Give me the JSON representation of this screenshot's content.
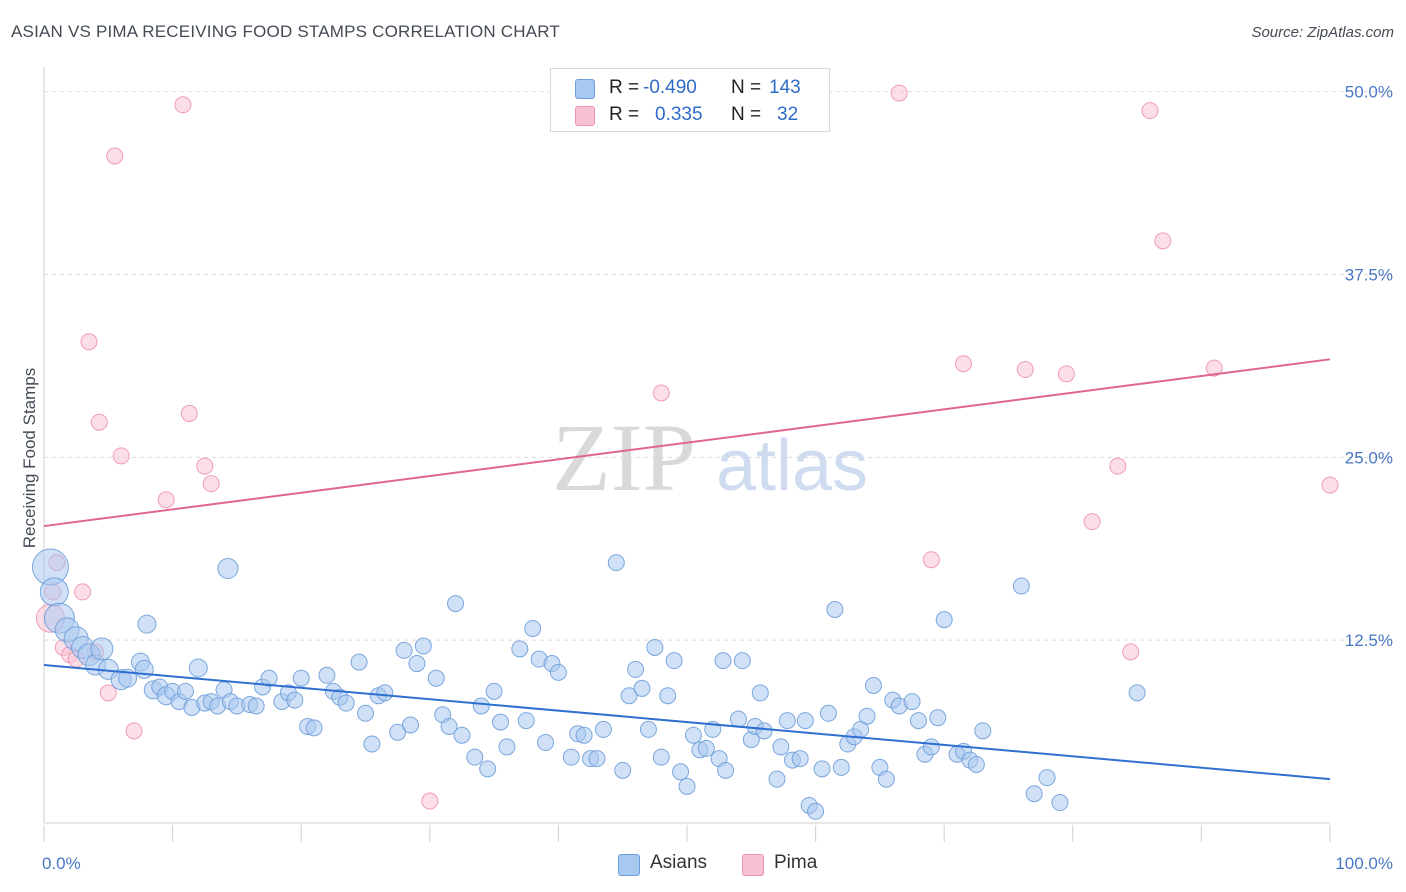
{
  "header": {
    "title": "ASIAN VS PIMA RECEIVING FOOD STAMPS CORRELATION CHART",
    "source": "Source: ZipAtlas.com"
  },
  "legend": {
    "asians": {
      "r_label": "R =",
      "r_value": "-0.490",
      "n_label": "N =",
      "n_value": "143"
    },
    "pima": {
      "r_label": "R =",
      "r_value": "0.335",
      "n_label": "N =",
      "n_value": "32"
    }
  },
  "bottom_legend": {
    "asians": "Asians",
    "pima": "Pima"
  },
  "watermark": {
    "zip": "ZIP",
    "atlas": "atlas"
  },
  "colors": {
    "asians_fill": "#a9c8f0",
    "asians_stroke": "#6f9fd9",
    "asians_line": "#2e6fcf",
    "pima_fill": "#f7c3d2",
    "pima_stroke": "#ee94b0",
    "pima_line": "#e0668f",
    "tick_text": "#4a78c4",
    "grid": "#dcdcdc"
  },
  "chart_data": {
    "type": "scatter",
    "title": "ASIAN VS PIMA RECEIVING FOOD STAMPS CORRELATION CHART",
    "xlabel": "",
    "ylabel": "Receiving Food Stamps",
    "xlim": [
      0,
      100
    ],
    "ylim": [
      0,
      51
    ],
    "y_ticks": [
      12.5,
      25.0,
      37.5,
      50.0
    ],
    "y_tick_labels": [
      "12.5%",
      "25.0%",
      "37.5%",
      "50.0%"
    ],
    "x_tick_labels": [
      "0.0%",
      "100.0%"
    ],
    "series": [
      {
        "name": "Asians",
        "r": -0.49,
        "n": 143,
        "trend": {
          "x": [
            0,
            100
          ],
          "y": [
            10.8,
            3.0
          ]
        },
        "points": [
          [
            0.5,
            17.5,
            18
          ],
          [
            0.8,
            15.8,
            14
          ],
          [
            1.2,
            14.0,
            15
          ],
          [
            1.8,
            13.2,
            12
          ],
          [
            2.5,
            12.6,
            12
          ],
          [
            3.0,
            12.0,
            11
          ],
          [
            3.5,
            11.5,
            11
          ],
          [
            4.0,
            10.8,
            10
          ],
          [
            4.5,
            11.9,
            11
          ],
          [
            5.0,
            10.5,
            10
          ],
          [
            6.0,
            9.8,
            10
          ],
          [
            6.5,
            9.9,
            9
          ],
          [
            7.5,
            11.0,
            9
          ],
          [
            7.8,
            10.5,
            9
          ],
          [
            8.0,
            13.6,
            9
          ],
          [
            8.5,
            9.1,
            9
          ],
          [
            9.0,
            9.3,
            8
          ],
          [
            9.5,
            8.7,
            9
          ],
          [
            10.0,
            9.0,
            8
          ],
          [
            10.5,
            8.3,
            8
          ],
          [
            11.0,
            9.0,
            8
          ],
          [
            11.5,
            7.9,
            8
          ],
          [
            12.0,
            10.6,
            9
          ],
          [
            12.5,
            8.2,
            8
          ],
          [
            13.0,
            8.3,
            8
          ],
          [
            13.5,
            8.0,
            8
          ],
          [
            14.0,
            9.1,
            8
          ],
          [
            14.5,
            8.3,
            8
          ],
          [
            15.0,
            8.0,
            8
          ],
          [
            14.3,
            17.4,
            10
          ],
          [
            16.0,
            8.1,
            8
          ],
          [
            16.5,
            8.0,
            8
          ],
          [
            17.0,
            9.3,
            8
          ],
          [
            17.5,
            9.9,
            8
          ],
          [
            18.5,
            8.3,
            8
          ],
          [
            19.0,
            8.9,
            8
          ],
          [
            19.5,
            8.4,
            8
          ],
          [
            20.0,
            9.9,
            8
          ],
          [
            20.5,
            6.6,
            8
          ],
          [
            21.0,
            6.5,
            8
          ],
          [
            22.0,
            10.1,
            8
          ],
          [
            22.5,
            9.0,
            8
          ],
          [
            23.0,
            8.6,
            8
          ],
          [
            23.5,
            8.2,
            8
          ],
          [
            24.5,
            11.0,
            8
          ],
          [
            25.0,
            7.5,
            8
          ],
          [
            25.5,
            5.4,
            8
          ],
          [
            26.0,
            8.7,
            8
          ],
          [
            26.5,
            8.9,
            8
          ],
          [
            27.5,
            6.2,
            8
          ],
          [
            28.0,
            11.8,
            8
          ],
          [
            28.5,
            6.7,
            8
          ],
          [
            29.0,
            10.9,
            8
          ],
          [
            29.5,
            12.1,
            8
          ],
          [
            30.5,
            9.9,
            8
          ],
          [
            31.0,
            7.4,
            8
          ],
          [
            31.5,
            6.6,
            8
          ],
          [
            32.0,
            15.0,
            8
          ],
          [
            32.5,
            6.0,
            8
          ],
          [
            33.5,
            4.5,
            8
          ],
          [
            34.0,
            8.0,
            8
          ],
          [
            34.5,
            3.7,
            8
          ],
          [
            35.0,
            9.0,
            8
          ],
          [
            35.5,
            6.9,
            8
          ],
          [
            36.0,
            5.2,
            8
          ],
          [
            37.0,
            11.9,
            8
          ],
          [
            37.5,
            7.0,
            8
          ],
          [
            38.0,
            13.3,
            8
          ],
          [
            38.5,
            11.2,
            8
          ],
          [
            39.0,
            5.5,
            8
          ],
          [
            39.5,
            10.9,
            8
          ],
          [
            40.0,
            10.3,
            8
          ],
          [
            41.0,
            4.5,
            8
          ],
          [
            41.5,
            6.1,
            8
          ],
          [
            42.0,
            6.0,
            8
          ],
          [
            42.5,
            4.4,
            8
          ],
          [
            43.0,
            4.4,
            8
          ],
          [
            43.5,
            6.4,
            8
          ],
          [
            44.5,
            17.8,
            8
          ],
          [
            45.0,
            3.6,
            8
          ],
          [
            45.5,
            8.7,
            8
          ],
          [
            46.0,
            10.5,
            8
          ],
          [
            46.5,
            9.2,
            8
          ],
          [
            47.0,
            6.4,
            8
          ],
          [
            47.5,
            12.0,
            8
          ],
          [
            48.0,
            4.5,
            8
          ],
          [
            48.5,
            8.7,
            8
          ],
          [
            49.0,
            11.1,
            8
          ],
          [
            49.5,
            3.5,
            8
          ],
          [
            50.0,
            2.5,
            8
          ],
          [
            50.5,
            6.0,
            8
          ],
          [
            51.0,
            5.0,
            8
          ],
          [
            51.5,
            5.1,
            8
          ],
          [
            52.0,
            6.4,
            8
          ],
          [
            52.5,
            4.4,
            8
          ],
          [
            52.8,
            11.1,
            8
          ],
          [
            53.0,
            3.6,
            8
          ],
          [
            54.0,
            7.1,
            8
          ],
          [
            54.3,
            11.1,
            8
          ],
          [
            55.0,
            5.7,
            8
          ],
          [
            55.3,
            6.6,
            8
          ],
          [
            55.7,
            8.9,
            8
          ],
          [
            56.0,
            6.3,
            8
          ],
          [
            57.0,
            3.0,
            8
          ],
          [
            57.3,
            5.2,
            8
          ],
          [
            57.8,
            7.0,
            8
          ],
          [
            58.2,
            4.3,
            8
          ],
          [
            58.8,
            4.4,
            8
          ],
          [
            59.5,
            1.2,
            8
          ],
          [
            59.2,
            7.0,
            8
          ],
          [
            60.0,
            0.8,
            8
          ],
          [
            60.5,
            3.7,
            8
          ],
          [
            61.0,
            7.5,
            8
          ],
          [
            61.5,
            14.6,
            8
          ],
          [
            62.0,
            3.8,
            8
          ],
          [
            62.5,
            5.4,
            8
          ],
          [
            63.0,
            5.9,
            8
          ],
          [
            63.5,
            6.4,
            8
          ],
          [
            64.0,
            7.3,
            8
          ],
          [
            64.5,
            9.4,
            8
          ],
          [
            65.0,
            3.8,
            8
          ],
          [
            65.5,
            3.0,
            8
          ],
          [
            66.0,
            8.4,
            8
          ],
          [
            66.5,
            8.0,
            8
          ],
          [
            67.5,
            8.3,
            8
          ],
          [
            68.0,
            7.0,
            8
          ],
          [
            68.5,
            4.7,
            8
          ],
          [
            69.0,
            5.2,
            8
          ],
          [
            69.5,
            7.2,
            8
          ],
          [
            70.0,
            13.9,
            8
          ],
          [
            71.0,
            4.7,
            8
          ],
          [
            71.5,
            4.9,
            8
          ],
          [
            72.0,
            4.3,
            8
          ],
          [
            72.5,
            4.0,
            8
          ],
          [
            73.0,
            6.3,
            8
          ],
          [
            76.0,
            16.2,
            8
          ],
          [
            77.0,
            2.0,
            8
          ],
          [
            78.0,
            3.1,
            8
          ],
          [
            79.0,
            1.4,
            8
          ],
          [
            85.0,
            8.9,
            8
          ]
        ]
      },
      {
        "name": "Pima",
        "r": 0.335,
        "n": 32,
        "trend": {
          "x": [
            0,
            100
          ],
          "y": [
            20.3,
            31.7
          ]
        },
        "points": [
          [
            0.5,
            14.0,
            14
          ],
          [
            0.7,
            15.8,
            8
          ],
          [
            1.0,
            17.8,
            8
          ],
          [
            1.5,
            12.0,
            8
          ],
          [
            2.0,
            11.5,
            8
          ],
          [
            2.5,
            11.2,
            8
          ],
          [
            3.0,
            15.8,
            8
          ],
          [
            3.5,
            32.9,
            8
          ],
          [
            4.0,
            11.7,
            8
          ],
          [
            4.3,
            27.4,
            8
          ],
          [
            5.0,
            8.9,
            8
          ],
          [
            5.5,
            45.6,
            8
          ],
          [
            6.0,
            25.1,
            8
          ],
          [
            7.0,
            6.3,
            8
          ],
          [
            9.5,
            22.1,
            8
          ],
          [
            10.8,
            49.1,
            8
          ],
          [
            11.3,
            28.0,
            8
          ],
          [
            12.5,
            24.4,
            8
          ],
          [
            13.0,
            23.2,
            8
          ],
          [
            30.0,
            1.5,
            8
          ],
          [
            48.0,
            29.4,
            8
          ],
          [
            66.5,
            49.9,
            8
          ],
          [
            69.0,
            18.0,
            8
          ],
          [
            71.5,
            31.4,
            8
          ],
          [
            76.3,
            31.0,
            8
          ],
          [
            79.5,
            30.7,
            8
          ],
          [
            81.5,
            20.6,
            8
          ],
          [
            83.5,
            24.4,
            8
          ],
          [
            84.5,
            11.7,
            8
          ],
          [
            86.0,
            48.7,
            8
          ],
          [
            87.0,
            39.8,
            8
          ],
          [
            91.0,
            31.1,
            8
          ],
          [
            100.0,
            23.1,
            8
          ]
        ]
      }
    ]
  }
}
